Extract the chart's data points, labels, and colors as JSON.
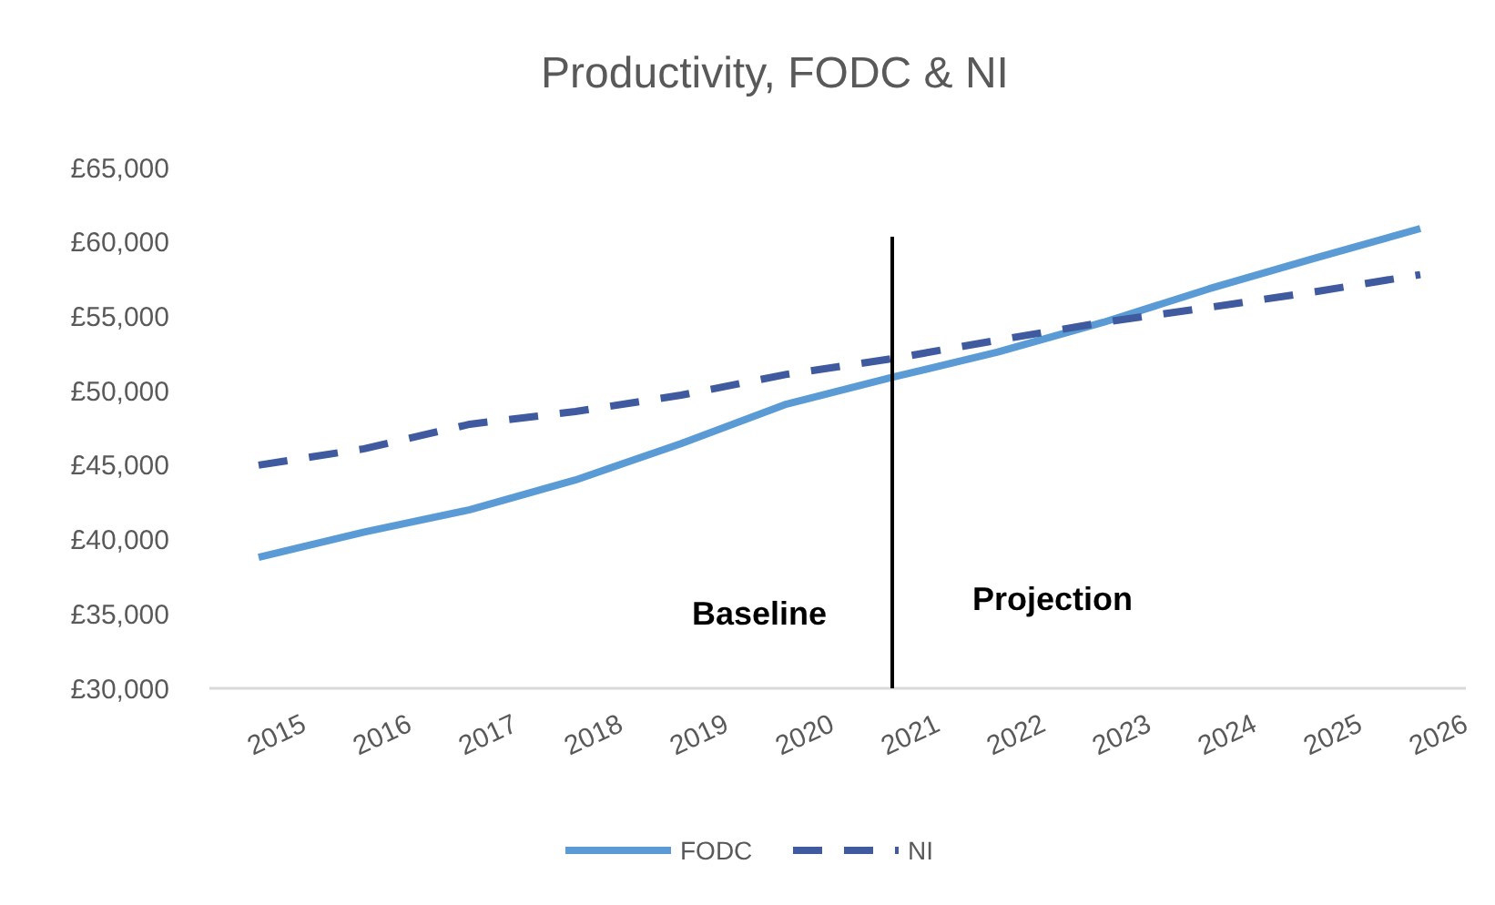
{
  "chart_data": {
    "type": "line",
    "title": "Productivity, FODC & NI",
    "categories": [
      "2015",
      "2016",
      "2017",
      "2018",
      "2019",
      "2020",
      "2021",
      "2022",
      "2023",
      "2024",
      "2025",
      "2026"
    ],
    "series": [
      {
        "name": "FODC",
        "color": "#5b9bd5",
        "line_style": "solid",
        "values": [
          38800,
          40500,
          42000,
          44000,
          46450,
          49100,
          50900,
          52600,
          54600,
          56850,
          58900,
          60900
        ]
      },
      {
        "name": "NI",
        "color": "#3f5a9e",
        "line_style": "dashed",
        "values": [
          45000,
          46100,
          47750,
          48600,
          49700,
          51100,
          52150,
          53400,
          54600,
          55600,
          56650,
          57800
        ]
      }
    ],
    "ylim": [
      30000,
      65000
    ],
    "yticks": [
      {
        "value": 30000,
        "label": "£30,000"
      },
      {
        "value": 35000,
        "label": "£35,000"
      },
      {
        "value": 40000,
        "label": "£40,000"
      },
      {
        "value": 45000,
        "label": "£45,000"
      },
      {
        "value": 50000,
        "label": "£50,000"
      },
      {
        "value": 55000,
        "label": "£55,000"
      },
      {
        "value": 60000,
        "label": "£60,000"
      },
      {
        "value": 65000,
        "label": "£65,000"
      }
    ],
    "ref_lines": [
      {
        "axis": "x",
        "value": "2021",
        "color": "#000000"
      }
    ],
    "annotations": [
      "Baseline",
      "Projection"
    ],
    "grid": false,
    "legend": "bottom"
  }
}
